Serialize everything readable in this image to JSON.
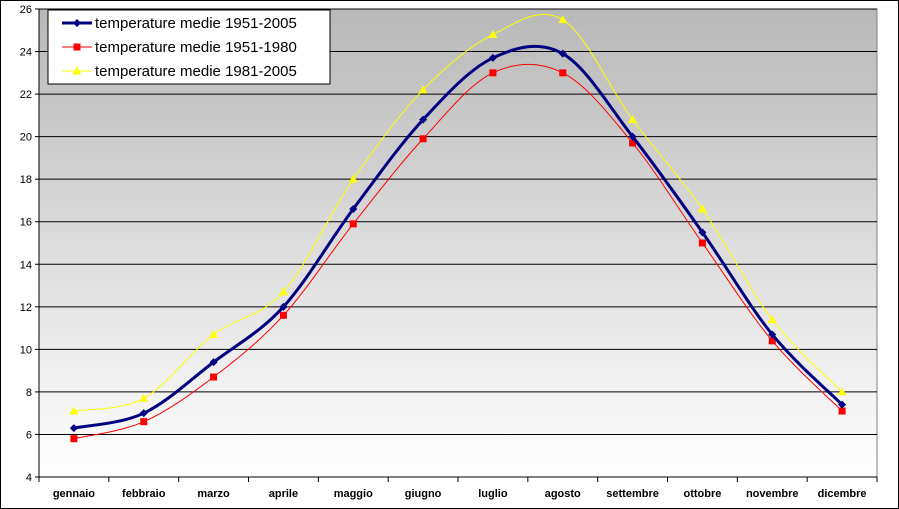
{
  "chart_data": {
    "type": "line",
    "title": "",
    "xlabel": "",
    "ylabel": "",
    "categories": [
      "gennaio",
      "febbraio",
      "marzo",
      "aprile",
      "maggio",
      "giugno",
      "luglio",
      "agosto",
      "settembre",
      "ottobre",
      "novembre",
      "dicembre"
    ],
    "ylim": [
      4,
      26
    ],
    "yticks": [
      4,
      6,
      8,
      10,
      12,
      14,
      16,
      18,
      20,
      22,
      24,
      26
    ],
    "grid": true,
    "legend_position": "top-left",
    "background_gradient": [
      "#ffffff",
      "#b8b8b8"
    ],
    "series": [
      {
        "name": "temperature medie 1951-2005",
        "color": "#000080",
        "marker": "diamond",
        "values": [
          6.3,
          7.0,
          9.4,
          12.0,
          16.6,
          20.8,
          23.7,
          23.9,
          20.0,
          15.5,
          10.7,
          7.4
        ]
      },
      {
        "name": "temperature medie 1951-1980",
        "color": "#ff0000",
        "marker": "square",
        "values": [
          5.8,
          6.6,
          8.7,
          11.6,
          15.9,
          19.9,
          23.0,
          23.0,
          19.7,
          15.0,
          10.4,
          7.1
        ]
      },
      {
        "name": "temperature medie 1981-2005",
        "color": "#ffff00",
        "marker": "triangle",
        "values": [
          7.1,
          7.7,
          10.7,
          12.7,
          18.0,
          22.2,
          24.8,
          25.5,
          20.8,
          16.6,
          11.4,
          8.0
        ]
      }
    ]
  }
}
